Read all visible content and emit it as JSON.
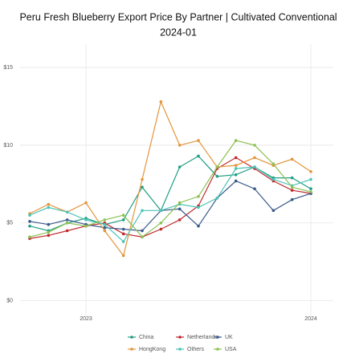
{
  "chart_data": {
    "type": "line",
    "title": "Peru Fresh Blueberry Export Price By Partner | Cultivated Conventional",
    "subtitle": "2024-01",
    "categories": [
      null,
      null,
      null,
      "2023",
      null,
      null,
      null,
      null,
      null,
      null,
      null,
      null,
      null,
      null,
      null,
      "2024"
    ],
    "series": [
      {
        "name": "China",
        "color": "#1f9e82",
        "values": [
          4.8,
          4.5,
          5.0,
          5.3,
          4.9,
          5.2,
          7.3,
          5.8,
          8.6,
          9.3,
          8.0,
          8.1,
          8.6,
          7.9,
          7.9,
          7.2
        ]
      },
      {
        "name": "Netherlands",
        "color": "#c0282d",
        "values": [
          4.0,
          4.2,
          4.5,
          4.8,
          5.0,
          4.3,
          4.1,
          4.6,
          5.2,
          6.1,
          8.5,
          9.2,
          8.5,
          7.7,
          7.1,
          6.9
        ]
      },
      {
        "name": "UK",
        "color": "#3a5a8a",
        "values": [
          5.1,
          4.9,
          5.2,
          4.9,
          4.7,
          4.6,
          4.5,
          5.8,
          5.9,
          4.8,
          6.6,
          7.7,
          7.2,
          5.8,
          6.5,
          6.9
        ]
      },
      {
        "name": "HongKong",
        "color": "#e3953c",
        "values": [
          5.6,
          6.2,
          5.7,
          6.3,
          4.5,
          2.9,
          7.8,
          12.8,
          10.0,
          10.3,
          8.6,
          8.7,
          9.2,
          8.7,
          9.1,
          8.3
        ]
      },
      {
        "name": "Others",
        "color": "#4cc3b6",
        "values": [
          5.5,
          6.0,
          5.7,
          5.2,
          4.9,
          3.8,
          5.8,
          5.8,
          6.2,
          6.0,
          6.6,
          8.5,
          8.6,
          7.8,
          7.4,
          7.8
        ]
      },
      {
        "name": "USA",
        "color": "#8cc152",
        "values": [
          4.1,
          4.4,
          5.0,
          4.8,
          5.2,
          5.5,
          4.1,
          5.0,
          6.3,
          6.7,
          8.6,
          10.3,
          10.0,
          8.8,
          7.3,
          7.0
        ]
      }
    ],
    "ylim": [
      -1,
      16.5
    ],
    "yticks": [
      {
        "value": 0,
        "label": "$0"
      },
      {
        "value": 5,
        "label": "$5"
      },
      {
        "value": 10,
        "label": "$10"
      },
      {
        "value": 15,
        "label": "$15"
      }
    ],
    "grid": true
  }
}
